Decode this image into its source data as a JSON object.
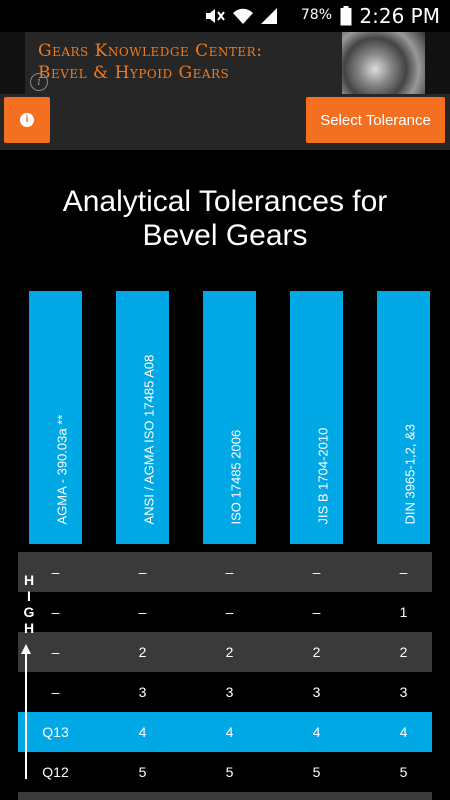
{
  "status_bar": {
    "battery_percent": "78%",
    "time": "2:26 PM",
    "icons": [
      "mute-icon",
      "wifi-icon",
      "signal-icon",
      "battery-icon"
    ]
  },
  "ad": {
    "title_line1": "Gears Knowledge Center:",
    "title_line2": "Bevel & Hypoid Gears",
    "info_icon_glyph": "i"
  },
  "toolbar": {
    "info_button_glyph": "i",
    "select_tolerance_label": "Select Tolerance"
  },
  "page": {
    "title_line1": "Analytical Tolerances for",
    "title_line2": "Bevel Gears"
  },
  "table": {
    "columns": [
      "AGMA - 390.03a **",
      "ANSI / AGMA ISO 17485 A08",
      "ISO 17485 2006",
      "JIS B 1704-2010",
      "DIN 3965-1,2, &3"
    ],
    "rows": [
      {
        "style": "dark",
        "cells": [
          "–",
          "–",
          "–",
          "–",
          "–"
        ]
      },
      {
        "style": "black",
        "cells": [
          "–",
          "–",
          "–",
          "–",
          "1"
        ]
      },
      {
        "style": "dark",
        "cells": [
          "–",
          "2",
          "2",
          "2",
          "2"
        ]
      },
      {
        "style": "black",
        "cells": [
          "–",
          "3",
          "3",
          "3",
          "3"
        ]
      },
      {
        "style": "blue",
        "cells": [
          "Q13",
          "4",
          "4",
          "4",
          "4"
        ]
      },
      {
        "style": "black",
        "cells": [
          "Q12",
          "5",
          "5",
          "5",
          "5"
        ]
      }
    ],
    "side_label": "HIGH"
  },
  "colors": {
    "accent_orange": "#f37021",
    "ad_text_orange": "#f07a1c",
    "header_blue": "#00a8e6",
    "row_dark": "#3a3a3a"
  }
}
